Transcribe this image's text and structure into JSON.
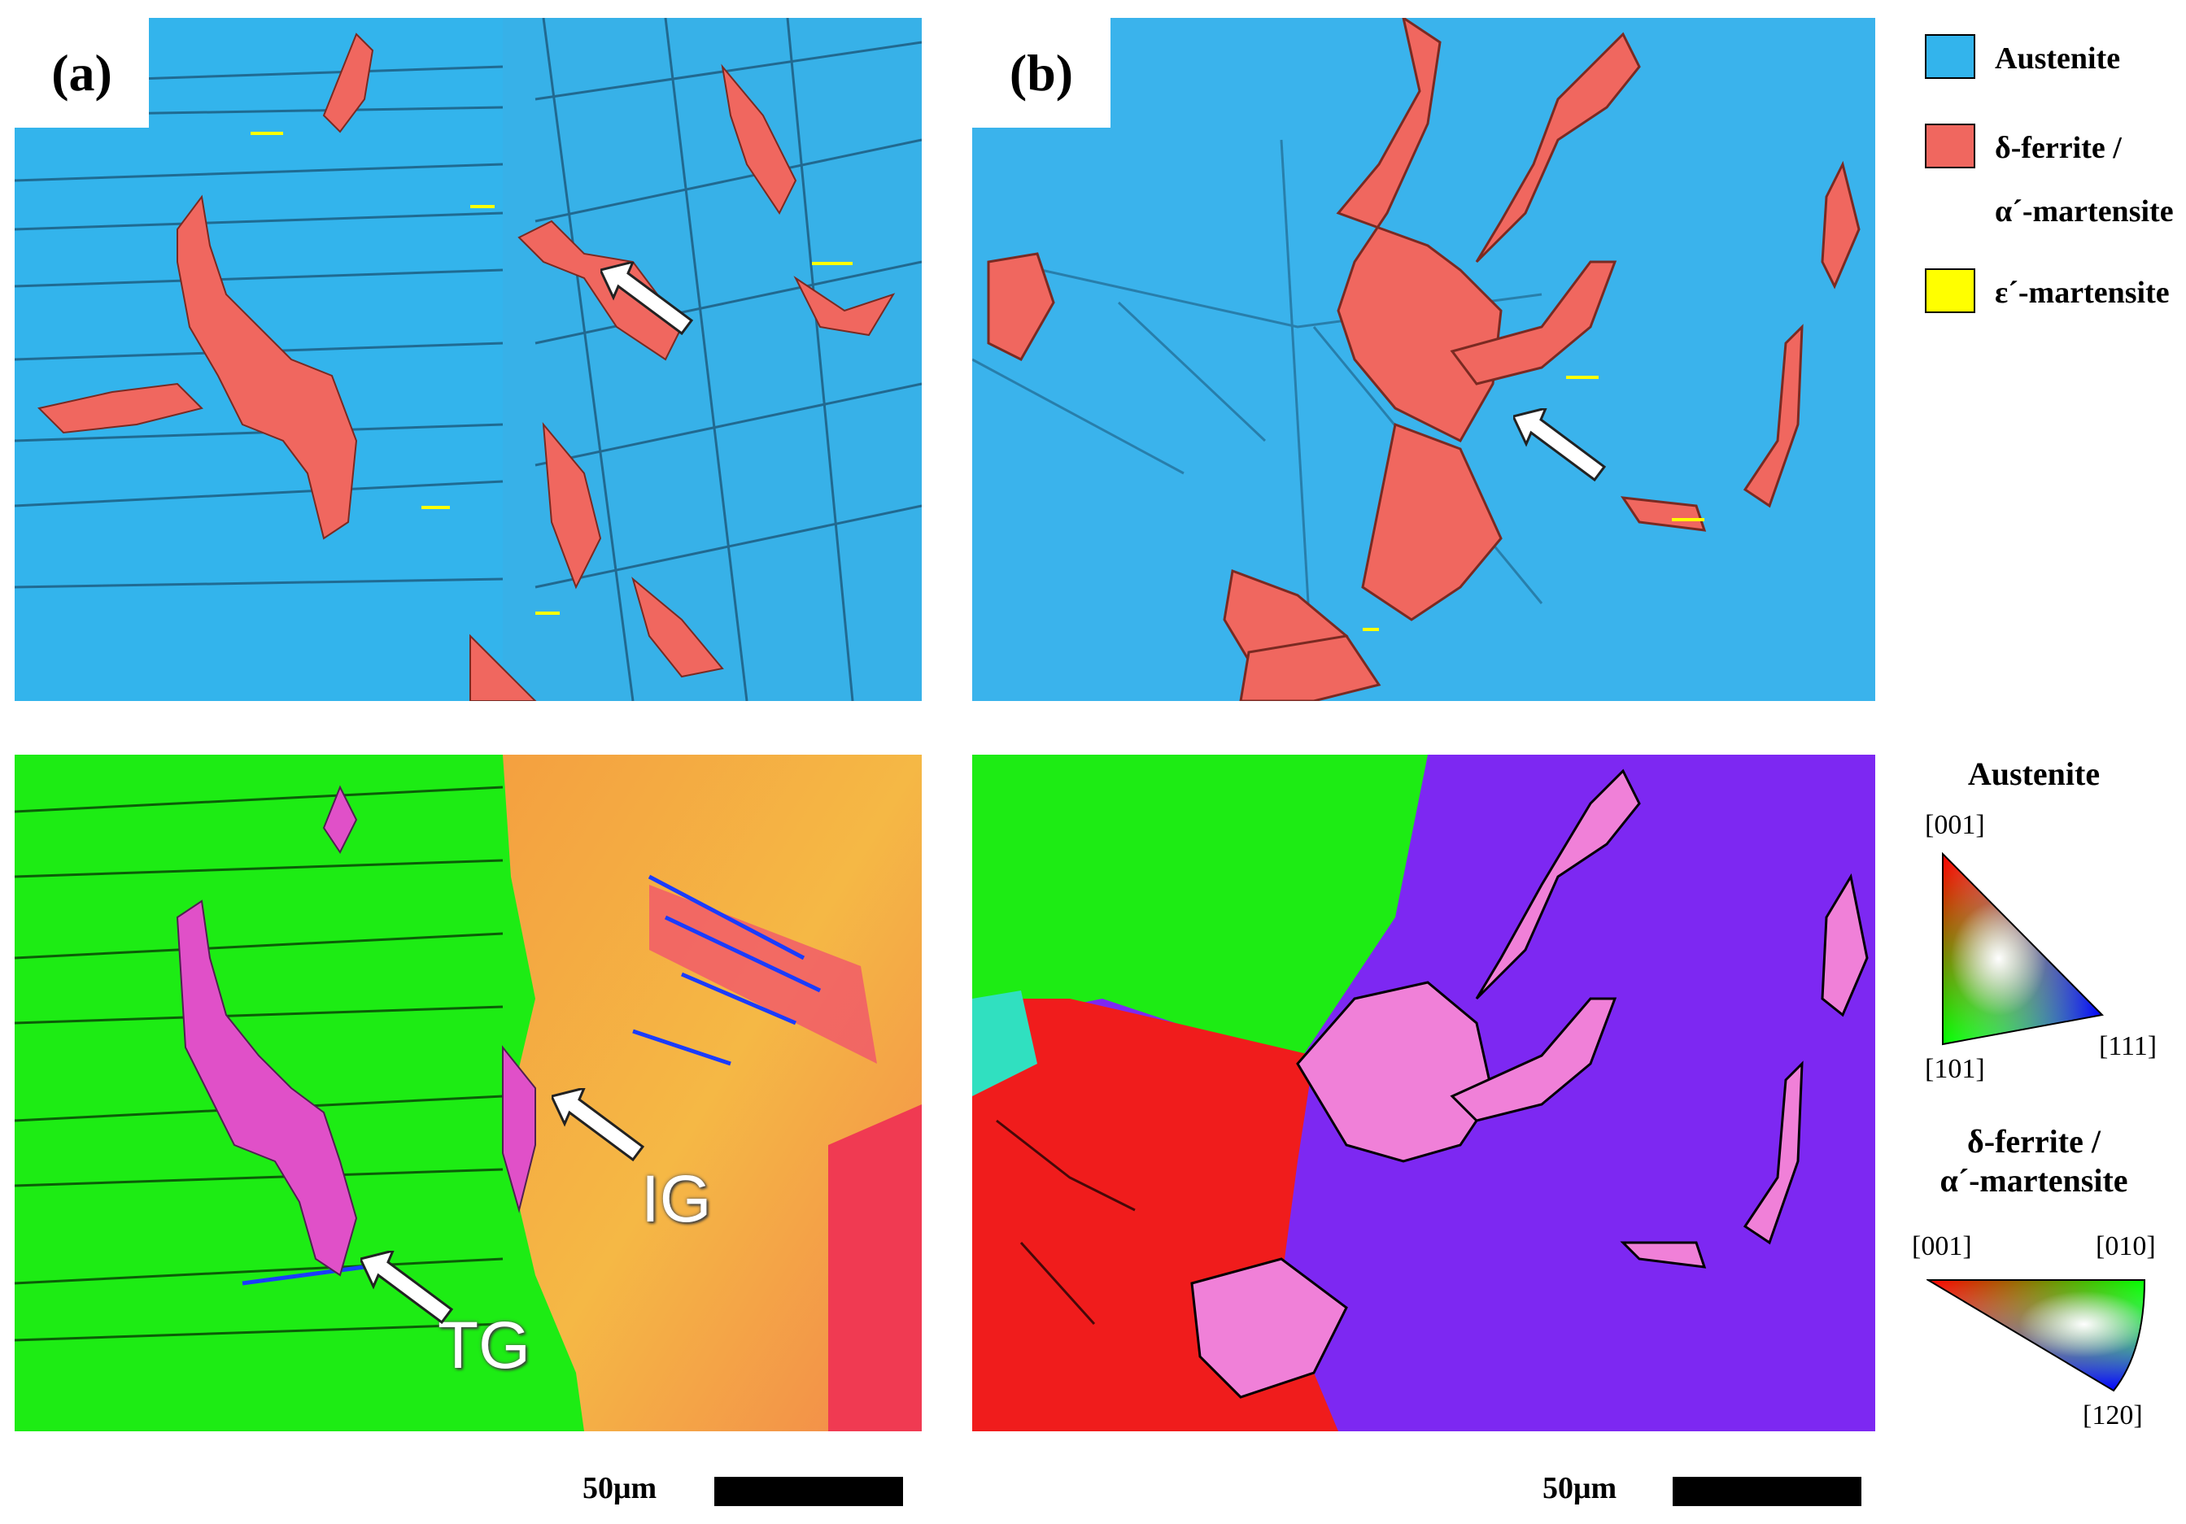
{
  "panels": {
    "a": {
      "label": "(a)"
    },
    "b": {
      "label": "(b)"
    }
  },
  "annotations": {
    "ig": "IG",
    "tg": "TG"
  },
  "phase_legend": [
    {
      "name": "Austenite",
      "color": "#33b4ec"
    },
    {
      "name": "δ-ferrite /",
      "color": "#f0675f"
    },
    {
      "name": "α´-martensite",
      "color": "#f0675f"
    },
    {
      "name": "ε´-martensite",
      "color": "#ffff00"
    }
  ],
  "orientation_key": {
    "austenite": {
      "title": "Austenite",
      "dir_top": "[001]",
      "dir_left": "[101]",
      "dir_right": "[111]"
    },
    "ferrite": {
      "title_line1": "δ-ferrite /",
      "title_line2": "α´-martensite",
      "dir_left": "[001]",
      "dir_right": "[010]",
      "dir_bottom": "[120]"
    }
  },
  "scale_bars": {
    "left": {
      "label": "50μm"
    },
    "right": {
      "label": "50μm"
    }
  }
}
